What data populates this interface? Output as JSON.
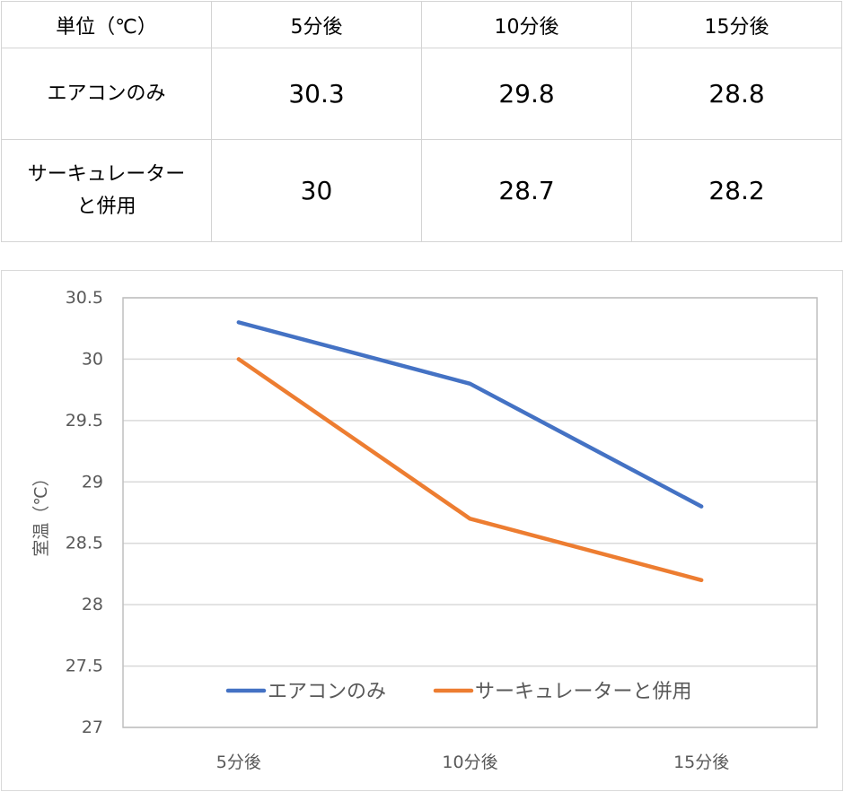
{
  "table": {
    "header": [
      "単位（℃）",
      "5分後",
      "10分後",
      "15分後"
    ],
    "rows": [
      {
        "label": "エアコンのみ",
        "values": [
          "30.3",
          "29.8",
          "28.8"
        ]
      },
      {
        "label_line1": "サーキュレーター",
        "label_line2": "と併用",
        "values": [
          "30",
          "28.7",
          "28.2"
        ]
      }
    ]
  },
  "chart_data": {
    "type": "line",
    "categories": [
      "5分後",
      "10分後",
      "15分後"
    ],
    "series": [
      {
        "name": "エアコンのみ",
        "values": [
          30.3,
          29.8,
          28.8
        ],
        "color": "#4472c4"
      },
      {
        "name": "サーキュレーターと併用",
        "values": [
          30,
          28.7,
          28.2
        ],
        "color": "#ed7d31"
      }
    ],
    "title": "",
    "xlabel": "",
    "ylabel": "室温（℃）",
    "ylim": [
      27,
      30.5
    ],
    "yticks": [
      "30.5",
      "30",
      "29.5",
      "29",
      "28.5",
      "28",
      "27.5",
      "27"
    ],
    "grid": true,
    "legend": "bottom-inside"
  }
}
